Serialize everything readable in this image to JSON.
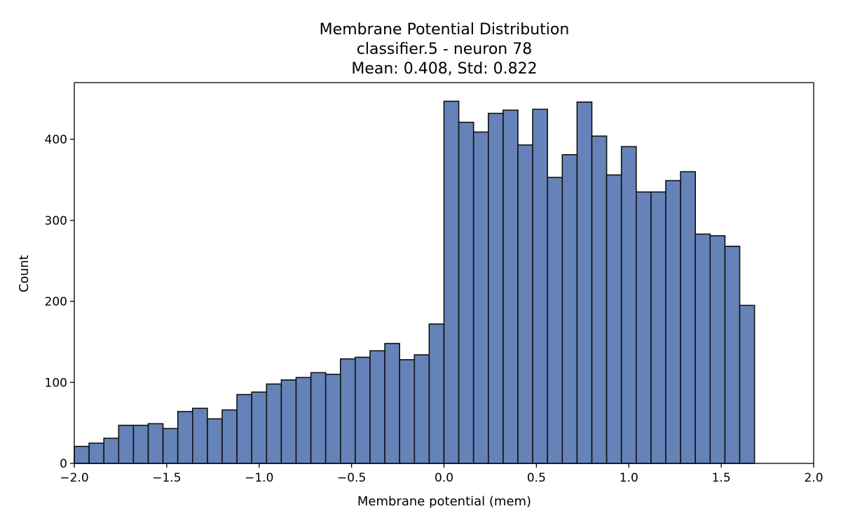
{
  "chart_data": {
    "type": "bar",
    "title_lines": [
      "Membrane Potential Distribution",
      "classifier.5 - neuron 78",
      "Mean: 0.408, Std: 0.822"
    ],
    "xlabel": "Membrane potential (mem)",
    "ylabel": "Count",
    "xlim": [
      -2.0,
      2.0
    ],
    "ylim": [
      0,
      470
    ],
    "x_ticks": [
      -2.0,
      -1.5,
      -1.0,
      -0.5,
      0.0,
      0.5,
      1.0,
      1.5,
      2.0
    ],
    "x_tick_labels": [
      "−2.0",
      "−1.5",
      "−1.0",
      "−0.5",
      "0.0",
      "0.5",
      "1.0",
      "1.5",
      "2.0"
    ],
    "y_ticks": [
      0,
      100,
      200,
      300,
      400
    ],
    "y_tick_labels": [
      "0",
      "100",
      "200",
      "300",
      "400"
    ],
    "bin_start": -2.0,
    "bin_width": 0.08,
    "values": [
      21,
      25,
      31,
      47,
      47,
      49,
      43,
      64,
      68,
      55,
      66,
      85,
      88,
      98,
      103,
      106,
      112,
      110,
      129,
      131,
      139,
      148,
      128,
      134,
      172,
      447,
      421,
      409,
      432,
      436,
      393,
      437,
      353,
      381,
      446,
      404,
      356,
      391,
      335,
      335,
      349,
      360,
      283,
      281,
      268,
      195
    ],
    "bar_color": "#6583b8",
    "edge_color": "#111111",
    "grid": false
  }
}
